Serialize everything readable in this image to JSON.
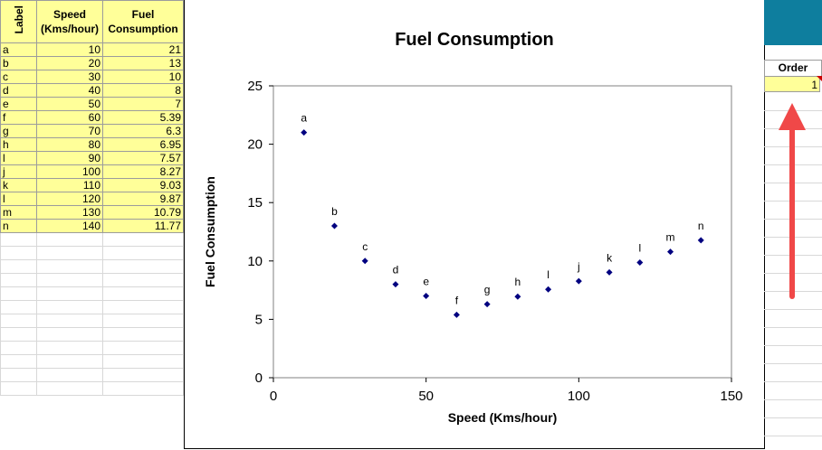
{
  "sheet": {
    "headers": {
      "label": "Label",
      "speed": "Speed (Kms/hour)",
      "fuel": "Fuel Consumption"
    },
    "rows": [
      {
        "label": "a",
        "speed": "10",
        "fuel": "21"
      },
      {
        "label": "b",
        "speed": "20",
        "fuel": "13"
      },
      {
        "label": "c",
        "speed": "30",
        "fuel": "10"
      },
      {
        "label": "d",
        "speed": "40",
        "fuel": "8"
      },
      {
        "label": "e",
        "speed": "50",
        "fuel": "7"
      },
      {
        "label": "f",
        "speed": "60",
        "fuel": "5.39"
      },
      {
        "label": "g",
        "speed": "70",
        "fuel": "6.3"
      },
      {
        "label": "h",
        "speed": "80",
        "fuel": "6.95"
      },
      {
        "label": "l",
        "speed": "90",
        "fuel": "7.57"
      },
      {
        "label": "j",
        "speed": "100",
        "fuel": "8.27"
      },
      {
        "label": "k",
        "speed": "110",
        "fuel": "9.03"
      },
      {
        "label": "l",
        "speed": "120",
        "fuel": "9.87"
      },
      {
        "label": "m",
        "speed": "130",
        "fuel": "10.79"
      },
      {
        "label": "n",
        "speed": "140",
        "fuel": "11.77"
      }
    ]
  },
  "order": {
    "header": "Order",
    "value": "1"
  },
  "colors": {
    "accent_teal": "#0e7e9e",
    "cell_yellow": "#ffff99",
    "marker": "#000080",
    "arrow": "#f04848"
  },
  "chart_data": {
    "type": "scatter",
    "title": "Fuel Consumption",
    "xlabel": "Speed (Kms/hour)",
    "ylabel": "Fuel Consumption",
    "xlim": [
      0,
      150
    ],
    "ylim": [
      0,
      25
    ],
    "xticks": [
      "0",
      "50",
      "100",
      "150"
    ],
    "yticks": [
      "0",
      "5",
      "10",
      "15",
      "20",
      "25"
    ],
    "grid": false,
    "points": [
      {
        "label": "a",
        "x": 10,
        "y": 21
      },
      {
        "label": "b",
        "x": 20,
        "y": 13
      },
      {
        "label": "c",
        "x": 30,
        "y": 10
      },
      {
        "label": "d",
        "x": 40,
        "y": 8
      },
      {
        "label": "e",
        "x": 50,
        "y": 7
      },
      {
        "label": "f",
        "x": 60,
        "y": 5.39
      },
      {
        "label": "g",
        "x": 70,
        "y": 6.3
      },
      {
        "label": "h",
        "x": 80,
        "y": 6.95
      },
      {
        "label": "l",
        "x": 90,
        "y": 7.57
      },
      {
        "label": "j",
        "x": 100,
        "y": 8.27
      },
      {
        "label": "k",
        "x": 110,
        "y": 9.03
      },
      {
        "label": "l",
        "x": 120,
        "y": 9.87
      },
      {
        "label": "m",
        "x": 130,
        "y": 10.79
      },
      {
        "label": "n",
        "x": 140,
        "y": 11.77
      }
    ]
  }
}
